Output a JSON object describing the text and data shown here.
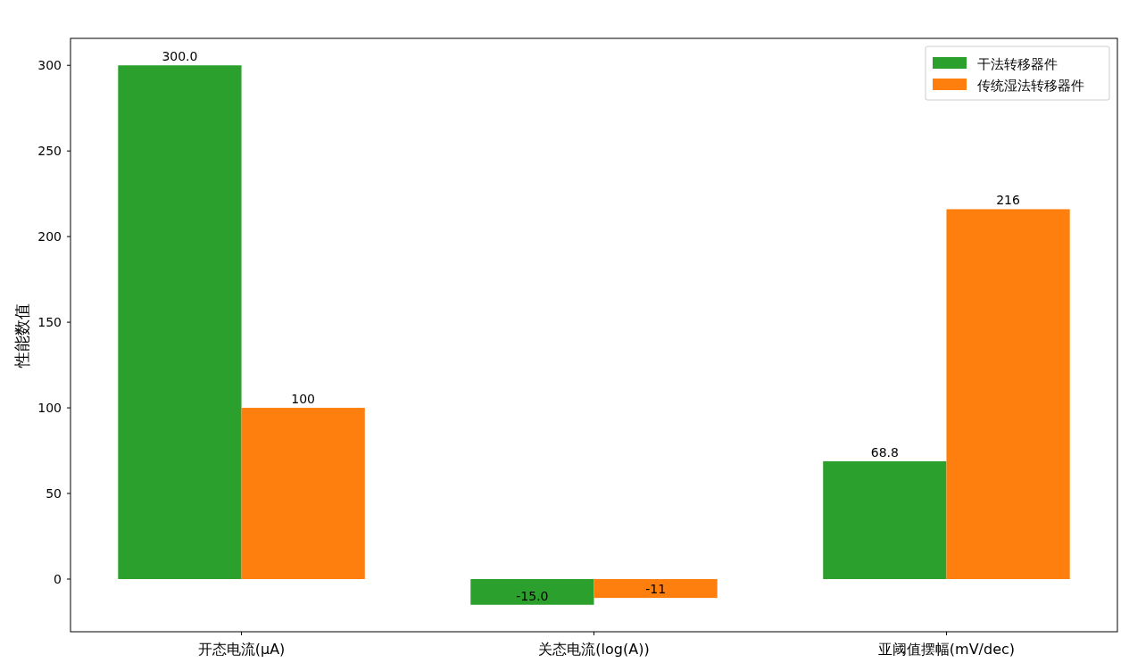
{
  "chart_data": {
    "type": "bar",
    "ylabel": "性能数值",
    "categories": [
      "开态电流(μA)",
      "关态电流(log(A))",
      "亚阈值摆幅(mV/dec)"
    ],
    "series": [
      {
        "name": "干法转移器件",
        "color": "#2ca02c",
        "values": [
          300.0,
          -15.0,
          68.8
        ],
        "value_labels": [
          "300.0",
          "-15.0",
          "68.8"
        ]
      },
      {
        "name": "传统湿法转移器件",
        "color": "#ff7f0e",
        "values": [
          100,
          -11,
          216
        ],
        "value_labels": [
          "100",
          "-11",
          "216"
        ]
      }
    ],
    "ylim": [
      -30.75,
      315.75
    ],
    "yticks": [
      0,
      50,
      100,
      150,
      200,
      250,
      300
    ],
    "legend": "top right"
  }
}
